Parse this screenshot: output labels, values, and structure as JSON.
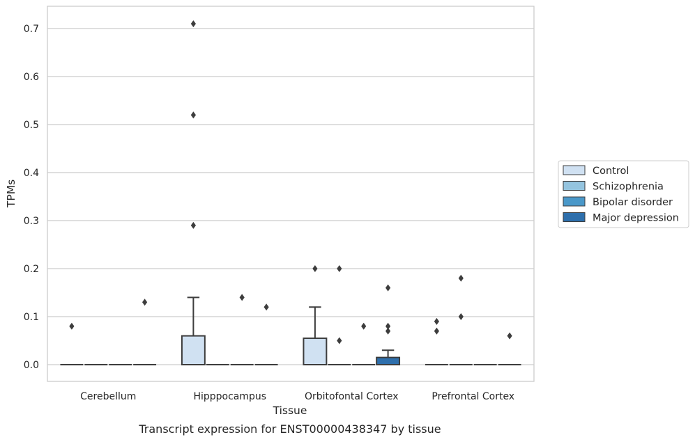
{
  "caption": "Transcript expression for ENST00000438347 by tissue",
  "chart_data": {
    "type": "box",
    "xlabel": "Tissue",
    "ylabel": "TPMs",
    "ylim": [
      -0.035,
      0.745
    ],
    "yticks": [
      "0.0",
      "0.1",
      "0.2",
      "0.3",
      "0.4",
      "0.5",
      "0.6",
      "0.7"
    ],
    "categories": [
      "Cerebellum",
      "Hipppocampus",
      "Orbitofontal Cortex",
      "Prefrontal Cortex"
    ],
    "grid": "horizontal",
    "legend_position": "outside right",
    "series": [
      {
        "name": "Control",
        "color": "#d0e1f2",
        "boxes": [
          {
            "q1": 0,
            "median": 0,
            "q3": 0,
            "whisker_low": 0,
            "whisker_high": 0,
            "outliers": [
              0.08
            ]
          },
          {
            "q1": 0,
            "median": 0,
            "q3": 0.06,
            "whisker_low": 0,
            "whisker_high": 0.14,
            "outliers": [
              0.29,
              0.52,
              0.71
            ]
          },
          {
            "q1": 0,
            "median": 0,
            "q3": 0.055,
            "whisker_low": 0,
            "whisker_high": 0.12,
            "outliers": [
              0.2
            ]
          },
          {
            "q1": 0,
            "median": 0,
            "q3": 0,
            "whisker_low": 0,
            "whisker_high": 0,
            "outliers": [
              0.07,
              0.09
            ]
          }
        ]
      },
      {
        "name": "Schizophrenia",
        "color": "#94c4df",
        "boxes": [
          {
            "q1": 0,
            "median": 0,
            "q3": 0,
            "whisker_low": 0,
            "whisker_high": 0,
            "outliers": []
          },
          {
            "q1": 0,
            "median": 0,
            "q3": 0,
            "whisker_low": 0,
            "whisker_high": 0,
            "outliers": []
          },
          {
            "q1": 0,
            "median": 0,
            "q3": 0,
            "whisker_low": 0,
            "whisker_high": 0,
            "outliers": [
              0.05,
              0.2
            ]
          },
          {
            "q1": 0,
            "median": 0,
            "q3": 0,
            "whisker_low": 0,
            "whisker_high": 0,
            "outliers": [
              0.1,
              0.18
            ]
          }
        ]
      },
      {
        "name": "Bipolar disorder",
        "color": "#4a98c9",
        "boxes": [
          {
            "q1": 0,
            "median": 0,
            "q3": 0,
            "whisker_low": 0,
            "whisker_high": 0,
            "outliers": []
          },
          {
            "q1": 0,
            "median": 0,
            "q3": 0,
            "whisker_low": 0,
            "whisker_high": 0,
            "outliers": [
              0.14
            ]
          },
          {
            "q1": 0,
            "median": 0,
            "q3": 0,
            "whisker_low": 0,
            "whisker_high": 0,
            "outliers": [
              0.08
            ]
          },
          {
            "q1": 0,
            "median": 0,
            "q3": 0,
            "whisker_low": 0,
            "whisker_high": 0,
            "outliers": []
          }
        ]
      },
      {
        "name": "Major depression",
        "color": "#2e6fac",
        "boxes": [
          {
            "q1": 0,
            "median": 0,
            "q3": 0,
            "whisker_low": 0,
            "whisker_high": 0,
            "outliers": [
              0.13
            ]
          },
          {
            "q1": 0,
            "median": 0,
            "q3": 0,
            "whisker_low": 0,
            "whisker_high": 0,
            "outliers": [
              0.12
            ]
          },
          {
            "q1": 0,
            "median": 0,
            "q3": 0.015,
            "whisker_low": 0,
            "whisker_high": 0.03,
            "outliers": [
              0.07,
              0.08,
              0.16
            ]
          },
          {
            "q1": 0,
            "median": 0,
            "q3": 0,
            "whisker_low": 0,
            "whisker_high": 0,
            "outliers": [
              0.06
            ]
          }
        ]
      }
    ]
  },
  "colors": {
    "grid": "#cccccc",
    "frame": "#cccccc",
    "box_edge": "#3d3d3d",
    "outlier": "#3d3d3d",
    "text": "#262626"
  }
}
